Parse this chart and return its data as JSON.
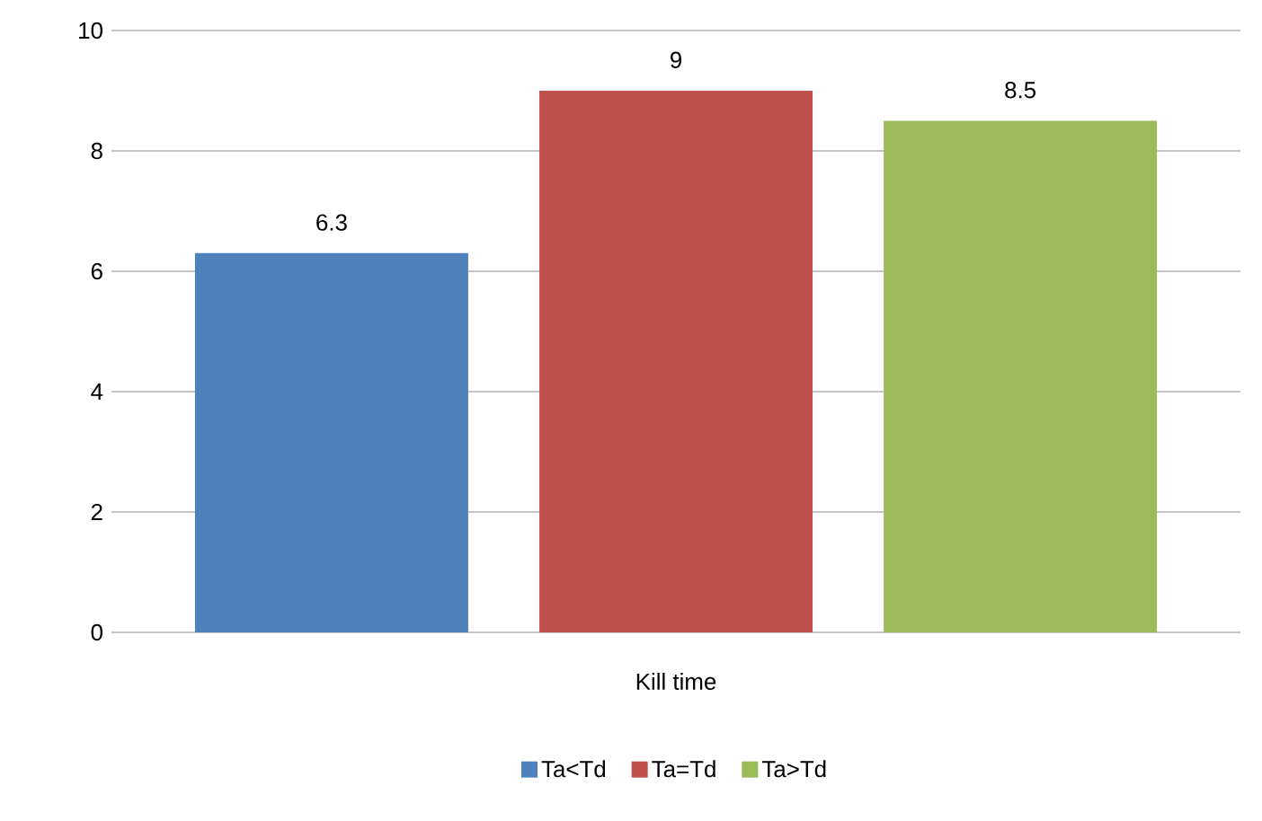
{
  "chart_data": {
    "type": "bar",
    "categories": [
      "Kill time"
    ],
    "series": [
      {
        "name": "Ta<Td",
        "color": "#4f81bd",
        "values": [
          6.3
        ]
      },
      {
        "name": "Ta=Td",
        "color": "#c0504d",
        "values": [
          9
        ]
      },
      {
        "name": "Ta>Td",
        "color": "#9bbb59",
        "values": [
          8.5
        ]
      }
    ],
    "ylim": [
      0,
      10
    ],
    "yticks": [
      0,
      2,
      4,
      6,
      8,
      10
    ],
    "grid": "y",
    "legend": "bottom",
    "data_labels": true
  }
}
